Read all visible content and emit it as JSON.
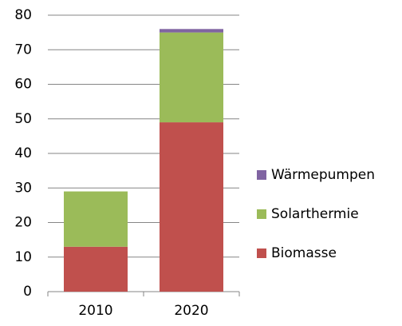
{
  "chart_data": {
    "type": "stacked-bar",
    "categories": [
      "2010",
      "2020"
    ],
    "series": [
      {
        "name": "Biomasse",
        "color": "#c0504d",
        "values": [
          13,
          49
        ]
      },
      {
        "name": "Solarthermie",
        "color": "#9bbb59",
        "values": [
          16,
          26
        ]
      },
      {
        "name": "Wärmepumpen",
        "color": "#8064a2",
        "values": [
          0,
          1
        ]
      }
    ],
    "ylim": [
      0,
      80
    ],
    "yticks": [
      0,
      10,
      20,
      30,
      40,
      50,
      60,
      70,
      80
    ],
    "grid": true,
    "legend": "right"
  }
}
